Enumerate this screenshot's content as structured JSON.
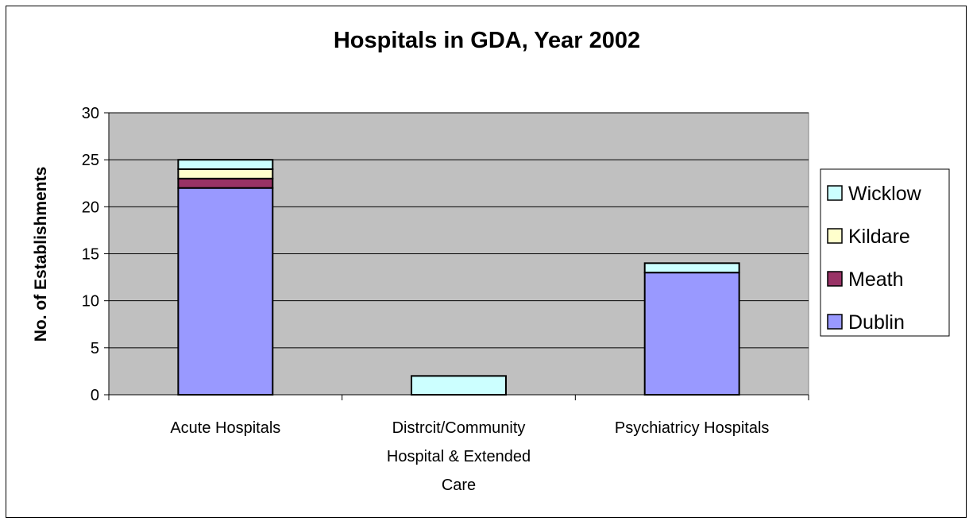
{
  "chart_data": {
    "type": "bar",
    "stacked": true,
    "title": "Hospitals in GDA, Year 2002",
    "xlabel": "",
    "ylabel": "No. of Establishments",
    "ylim": [
      0,
      30
    ],
    "yticks": [
      0,
      5,
      10,
      15,
      20,
      25,
      30
    ],
    "grid": true,
    "legend_position": "right",
    "categories": [
      [
        "Acute Hospitals"
      ],
      [
        "Distrcit/Community",
        "Hospital & Extended",
        "Care"
      ],
      [
        "Psychiatricy Hospitals"
      ]
    ],
    "series": [
      {
        "name": "Dublin",
        "values": [
          22,
          0,
          13
        ],
        "color": "#9999ff"
      },
      {
        "name": "Meath",
        "values": [
          1,
          0,
          0
        ],
        "color": "#993366"
      },
      {
        "name": "Kildare",
        "values": [
          1,
          0,
          0
        ],
        "color": "#ffffcc"
      },
      {
        "name": "Wicklow",
        "values": [
          1,
          2,
          1
        ],
        "color": "#ccffff"
      }
    ],
    "plot_background": "#c0c0c0"
  }
}
